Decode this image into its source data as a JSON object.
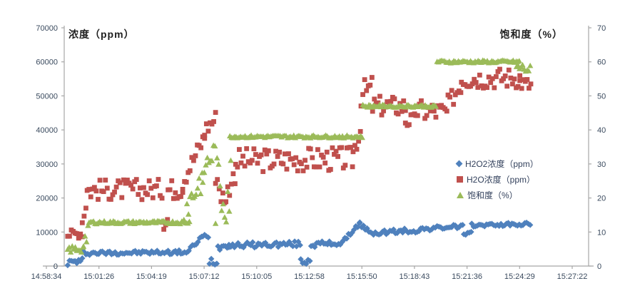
{
  "page": {
    "background": "#ffffff"
  },
  "chart_data": {
    "type": "scatter",
    "left_axis": {
      "title": "浓度（ppm）",
      "min": 0,
      "max": 70000,
      "tick_step": 10000,
      "ticks": [
        "0",
        "10000",
        "20000",
        "30000",
        "40000",
        "50000",
        "60000",
        "70000"
      ]
    },
    "right_axis": {
      "title": "饱和度（%）",
      "min": 0,
      "max": 70,
      "tick_step": 10,
      "ticks": [
        "0",
        "10",
        "20",
        "30",
        "40",
        "50",
        "60",
        "70"
      ]
    },
    "x_axis": {
      "tick_labels": [
        "14:58:34",
        "15:01:26",
        "15:04:19",
        "15:07:12",
        "15:10:05",
        "15:12:58",
        "15:15:50",
        "15:18:43",
        "15:21:36",
        "15:24:29",
        "15:27:22"
      ],
      "start_seconds": 0,
      "end_seconds": 1728
    },
    "colors": {
      "h2o2": "#4F81BD",
      "h2o": "#C0504D",
      "saturation": "#9BBB59",
      "axis_line": "#A6A6A6",
      "tick_text": "#3A4A5E",
      "title_text": "#1F1F1F"
    },
    "legend_position": "middle-right",
    "grid": "off",
    "series": [
      {
        "name": "H2O2浓度（ppm）",
        "axis": "left",
        "marker": "diamond",
        "color": "#4F81BD",
        "step_seconds": 6,
        "segments": [
          [
            70,
            118,
            1000,
            1600,
            900
          ],
          [
            118,
            468,
            3800,
            4100,
            600
          ],
          [
            468,
            514,
            4500,
            8800,
            700
          ],
          [
            514,
            536,
            8800,
            8200,
            700
          ],
          [
            536,
            564,
            1500,
            1500,
            1300
          ],
          [
            564,
            600,
            5500,
            6400,
            900
          ],
          [
            600,
            836,
            6100,
            6500,
            800
          ],
          [
            836,
            870,
            1300,
            1800,
            1100
          ],
          [
            870,
            975,
            6300,
            6800,
            800
          ],
          [
            975,
            1030,
            7200,
            12600,
            500
          ],
          [
            1030,
            1075,
            12400,
            8800,
            700
          ],
          [
            1075,
            1230,
            9700,
            10600,
            800
          ],
          [
            1230,
            1372,
            10800,
            11800,
            600
          ],
          [
            1372,
            1398,
            8900,
            9300,
            800
          ],
          [
            1398,
            1592,
            12000,
            12300,
            500
          ]
        ]
      },
      {
        "name": "H2O浓度（ppm）",
        "axis": "left",
        "marker": "square",
        "color": "#C0504D",
        "step_seconds": 6,
        "segments": [
          [
            70,
            118,
            9300,
            9700,
            1400
          ],
          [
            118,
            134,
            13000,
            20000,
            2000
          ],
          [
            134,
            380,
            22400,
            22600,
            3100
          ],
          [
            380,
            400,
            14500,
            14000,
            3600
          ],
          [
            400,
            448,
            22500,
            23000,
            3100
          ],
          [
            448,
            520,
            25000,
            38000,
            2800
          ],
          [
            520,
            556,
            40000,
            43500,
            2600
          ],
          [
            556,
            590,
            28000,
            16000,
            4200
          ],
          [
            590,
            622,
            21000,
            27500,
            3000
          ],
          [
            622,
            1008,
            31000,
            31500,
            3600
          ],
          [
            1008,
            1034,
            33500,
            40500,
            2800
          ],
          [
            1034,
            1072,
            50500,
            52500,
            3800
          ],
          [
            1072,
            1180,
            47000,
            47000,
            3100
          ],
          [
            1180,
            1214,
            42800,
            42500,
            2400
          ],
          [
            1214,
            1320,
            45800,
            45200,
            3300
          ],
          [
            1320,
            1364,
            47500,
            53500,
            2800
          ],
          [
            1364,
            1556,
            55200,
            55400,
            3100
          ],
          [
            1556,
            1592,
            54000,
            53000,
            2300
          ]
        ]
      },
      {
        "name": "饱和度（%）",
        "axis": "right",
        "marker": "triangle",
        "color": "#9BBB59",
        "step_seconds": 5,
        "segments": [
          [
            70,
            122,
            4.8,
            5.0,
            1.1
          ],
          [
            122,
            140,
            7,
            11,
            2.2
          ],
          [
            140,
            474,
            12.8,
            12.8,
            0.45
          ],
          [
            452,
            514,
            16,
            26,
            4.5
          ],
          [
            514,
            556,
            28,
            34,
            3.5
          ],
          [
            556,
            610,
            21,
            23,
            11
          ],
          [
            603,
            1040,
            38,
            38,
            0.4
          ],
          [
            1040,
            1284,
            47,
            47,
            0.4
          ],
          [
            1284,
            1555,
            60,
            60,
            0.4
          ],
          [
            1545,
            1592,
            58.5,
            57.5,
            1.4
          ]
        ]
      }
    ]
  }
}
